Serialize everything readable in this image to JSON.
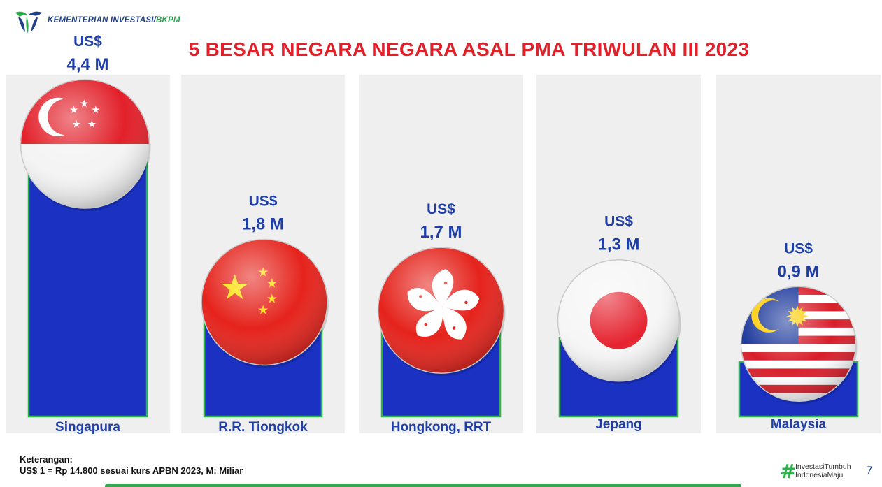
{
  "header": {
    "org_name": "KEMENTERIAN INVESTASI/",
    "org_suffix": "BKPM"
  },
  "chart_data": {
    "type": "bar",
    "title": "5 BESAR NEGARA NEGARA ASAL PMA TRIWULAN III 2023",
    "currency_label": "US$",
    "categories": [
      "Singapura",
      "R.R. Tiongkok",
      "Hongkong, RRT",
      "Jepang",
      "Malaysia"
    ],
    "values": [
      4.4,
      1.8,
      1.7,
      1.3,
      0.9
    ],
    "value_labels": [
      "4,4 M",
      "1,8 M",
      "1,7 M",
      "1,3 M",
      "0,9 M"
    ],
    "bar_color": "#1a31c2",
    "bar_border_color": "#2fb24a",
    "panel_color": "#efefef",
    "label_color": "#1f3fa8",
    "flags": [
      "singapore-flag",
      "china-flag",
      "hong-kong-flag",
      "japan-flag",
      "malaysia-flag"
    ],
    "xlabel": "",
    "ylabel": ""
  },
  "footer": {
    "note_title": "Keterangan:",
    "note_text": "US$ 1 = Rp 14.800 sesuai kurs APBN 2023, M: Miliar",
    "hashtag_symbol": "#",
    "hashtag_line1": "InvestasiTumbuh",
    "hashtag_line2": "IndonesiaMaju",
    "page_number": "7"
  }
}
